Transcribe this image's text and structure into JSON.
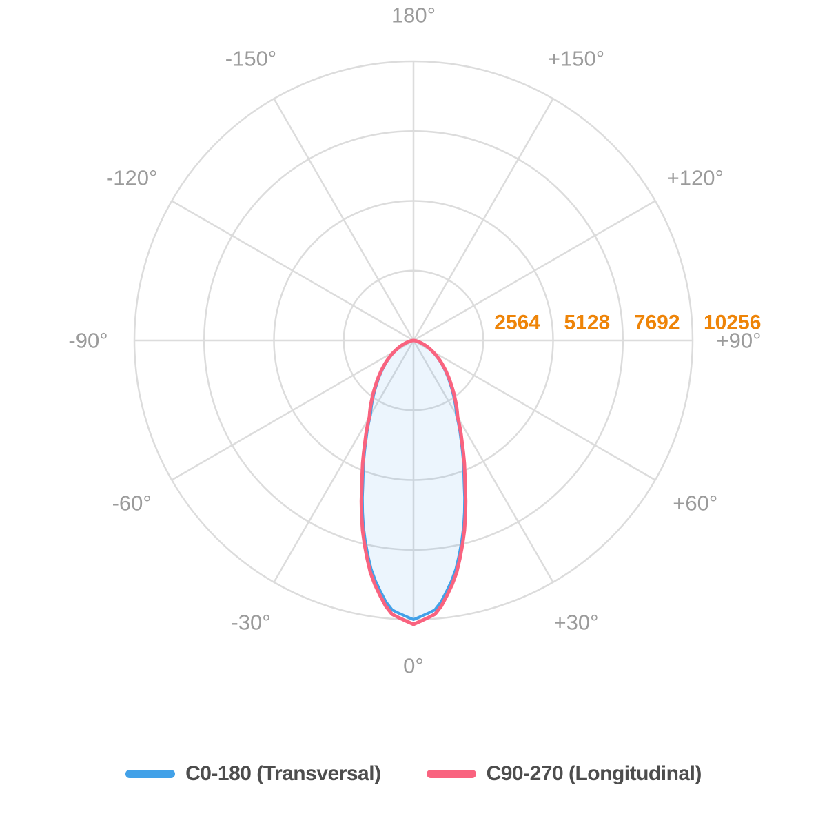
{
  "chart_data": {
    "type": "polar",
    "subtype": "photometric-intensity-distribution",
    "title": "",
    "units": "cd",
    "grid_color": "#DCDCDC",
    "grid_on": true,
    "radial_axis": {
      "max": 10256,
      "ticks": [
        2564,
        5128,
        7692,
        10256
      ],
      "tick_labels": [
        "2564",
        "5128",
        "7692",
        "10256"
      ],
      "tick_color": "#EE8408"
    },
    "angle_axis": {
      "spoke_step_deg": 30,
      "zero_position": "bottom",
      "label_color": "#9B9B9B",
      "labels": [
        {
          "angle": 0,
          "label": "0°"
        },
        {
          "angle": 30,
          "label": "+30°"
        },
        {
          "angle": 60,
          "label": "+60°"
        },
        {
          "angle": 90,
          "label": "+90°"
        },
        {
          "angle": 120,
          "label": "+120°"
        },
        {
          "angle": 150,
          "label": "+150°"
        },
        {
          "angle": 180,
          "label": "180°"
        },
        {
          "angle": -150,
          "label": "-150°"
        },
        {
          "angle": -120,
          "label": "-120°"
        },
        {
          "angle": -90,
          "label": "-90°"
        },
        {
          "angle": -60,
          "label": "-60°"
        }
      ],
      "label_minus30": {
        "angle": -30,
        "label": "-30°"
      }
    },
    "series": [
      {
        "name": "C0-180 (Transversal)",
        "data_name": "c0-180-curve",
        "color": "#42A1E8",
        "fill": "rgba(66,161,232,0.10)",
        "stroke_width": 4,
        "symmetric_mirror": true,
        "gamma_deg": [
          0,
          5,
          10,
          15,
          20,
          25,
          30,
          35,
          40,
          45,
          50,
          55,
          60,
          65,
          70,
          75,
          80,
          85,
          90
        ],
        "candela": [
          10256,
          9900,
          8700,
          7100,
          5400,
          4150,
          3160,
          2600,
          2100,
          1700,
          1350,
          1050,
          780,
          550,
          350,
          190,
          90,
          30,
          0
        ]
      },
      {
        "name": "C90-270 (Longitudinal)",
        "data_name": "c90-270-curve",
        "color": "#F9637F",
        "fill": "none",
        "stroke_width": 5,
        "symmetric_mirror": true,
        "gamma_deg": [
          0,
          5,
          10,
          15,
          20,
          25,
          30,
          35,
          40,
          45,
          50,
          55,
          60,
          65,
          70,
          75,
          80,
          85,
          90
        ],
        "candela": [
          10430,
          10050,
          8840,
          7230,
          5520,
          4250,
          3240,
          2680,
          2170,
          1760,
          1400,
          1090,
          810,
          580,
          370,
          200,
          100,
          35,
          0
        ]
      }
    ],
    "legend_position": "bottom"
  },
  "legend": {
    "text_color": "#4D4D4D",
    "items": [
      {
        "label": "C0-180 (Transversal)",
        "color": "#42A1E8"
      },
      {
        "label": "C90-270 (Longitudinal)",
        "color": "#F9637F"
      }
    ]
  }
}
